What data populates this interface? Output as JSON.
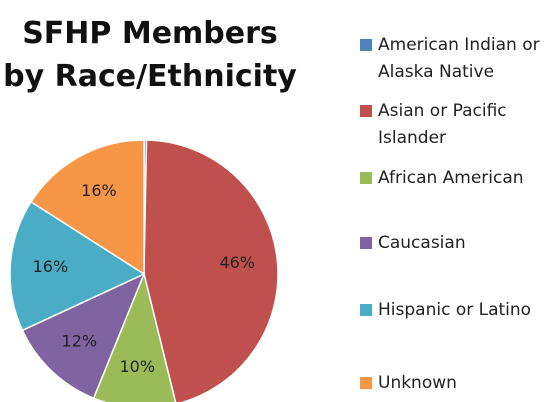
{
  "chart_data": {
    "type": "pie",
    "title": "SFHP Members by Race/Ethnicity",
    "categories": [
      "American Indian or Alaska Native",
      "Asian or Pacific Islander",
      "African American",
      "Caucasian",
      "Hispanic or Latino",
      "Unknown"
    ],
    "values": [
      0.3,
      46,
      10,
      12,
      16,
      16
    ],
    "value_labels": [
      null,
      "46%",
      "10%",
      "12%",
      "16%",
      "16%"
    ],
    "colors": [
      "#4f81bd",
      "#c0504d",
      "#9bbb59",
      "#8064a2",
      "#4bacc6",
      "#f79646"
    ],
    "legend": "right"
  }
}
